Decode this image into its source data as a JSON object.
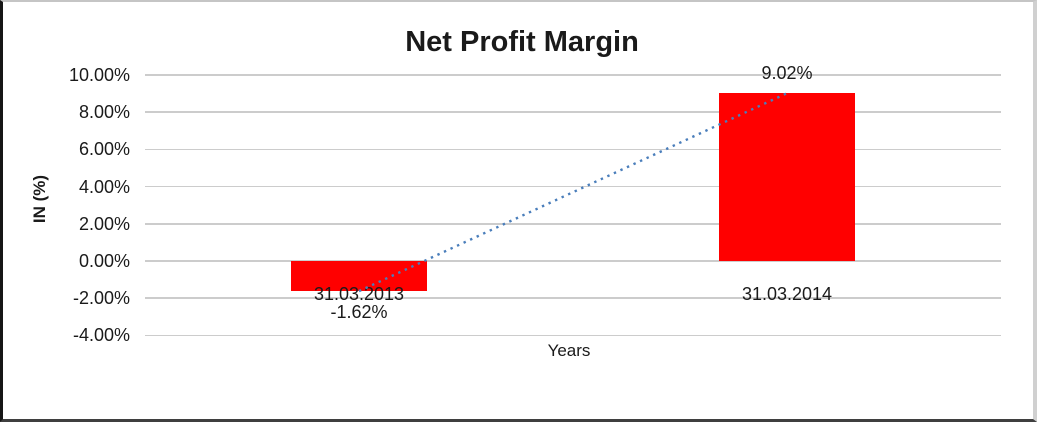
{
  "chart_data": {
    "type": "bar",
    "title": "Net Profit Margin",
    "xlabel": "Years",
    "ylabel": "IN (%)",
    "categories": [
      "31.03.2013",
      "31.03.2014"
    ],
    "values": [
      -1.62,
      9.02
    ],
    "data_labels": [
      "-1.62%",
      "9.02%"
    ],
    "y_ticks": [
      {
        "value": 10,
        "label": "10.00%"
      },
      {
        "value": 8,
        "label": "8.00%"
      },
      {
        "value": 6,
        "label": "6.00%"
      },
      {
        "value": 4,
        "label": "4.00%"
      },
      {
        "value": 2,
        "label": "2.00%"
      },
      {
        "value": 0,
        "label": "0.00%"
      },
      {
        "value": -2,
        "label": "-2.00%"
      },
      {
        "value": -4,
        "label": "-4.00%"
      }
    ],
    "ylim": [
      -4,
      10
    ],
    "grid": true,
    "legend": false,
    "bar_color": "#ff0000",
    "trendline": {
      "style": "dotted",
      "color": "#4a7ebb",
      "from": {
        "category_index": 0,
        "value": -1.62
      },
      "to": {
        "category_index": 1,
        "value": 9.02
      }
    }
  }
}
